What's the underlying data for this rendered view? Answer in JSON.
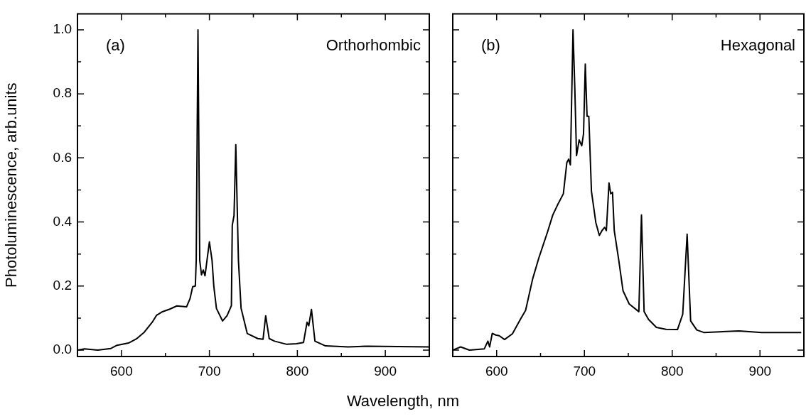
{
  "chart_data": [
    {
      "type": "line",
      "xlabel": "Wavelength, nm",
      "ylabel": "Photoluminescence, arb.units",
      "annotations": [
        "(a)",
        "Orthorhombic"
      ],
      "grid": false,
      "legend": false,
      "marker": "none",
      "color": "#000000",
      "x": [
        550,
        558,
        573,
        588,
        595,
        608,
        617,
        626,
        635,
        640,
        646,
        655,
        663,
        674,
        678,
        681,
        684,
        685,
        687,
        689,
        691,
        693,
        695,
        698,
        700,
        703,
        705,
        708,
        715,
        720,
        725,
        726,
        728,
        730,
        733,
        736,
        743,
        755,
        761,
        764,
        768,
        774,
        788,
        799,
        807,
        811,
        813,
        816,
        820,
        832,
        858,
        879,
        950
      ],
      "values": [
        0.0,
        0.004,
        0.0,
        0.005,
        0.015,
        0.022,
        0.035,
        0.056,
        0.087,
        0.109,
        0.119,
        0.128,
        0.138,
        0.135,
        0.161,
        0.198,
        0.2,
        0.28,
        1.0,
        0.28,
        0.235,
        0.25,
        0.232,
        0.296,
        0.338,
        0.28,
        0.2,
        0.13,
        0.091,
        0.107,
        0.139,
        0.39,
        0.42,
        0.641,
        0.28,
        0.131,
        0.052,
        0.036,
        0.034,
        0.107,
        0.036,
        0.028,
        0.018,
        0.02,
        0.024,
        0.087,
        0.076,
        0.127,
        0.028,
        0.013,
        0.01,
        0.012,
        0.01
      ],
      "xlim": [
        550,
        950
      ],
      "ylim": [
        -0.02,
        1.05
      ],
      "xticks": [
        600,
        {
          "value": 650,
          "label": null
        },
        700,
        {
          "value": 750,
          "label": null
        },
        800,
        {
          "value": 850,
          "label": null
        },
        900
      ],
      "yticks": [
        {
          "value": 0,
          "label": "0.0"
        },
        {
          "value": 0.1,
          "label": null
        },
        0.2,
        {
          "value": 0.3,
          "label": null
        },
        0.4,
        {
          "value": 0.5,
          "label": null
        },
        0.6,
        {
          "value": 0.7,
          "label": null
        },
        0.8,
        {
          "value": 0.9,
          "label": null
        },
        {
          "value": 1,
          "label": "1.0"
        }
      ]
    },
    {
      "type": "line",
      "annotations": [
        "(b)",
        "Hexagonal"
      ],
      "grid": false,
      "legend": false,
      "marker": "none",
      "color": "#000000",
      "tick_labels": "x",
      "x": [
        550,
        559,
        569,
        586,
        590,
        592,
        595,
        599,
        603,
        609,
        618,
        627,
        633,
        641,
        648,
        658,
        664,
        669,
        676,
        680,
        682,
        684,
        687,
        689,
        691,
        694,
        697,
        699,
        701,
        703,
        705,
        708,
        713,
        717,
        720,
        723,
        725,
        728,
        730,
        732,
        734,
        739,
        744,
        751,
        762,
        765,
        768,
        773,
        782,
        793,
        806,
        812,
        817,
        821,
        828,
        836,
        876,
        902,
        947
      ],
      "values": [
        0.0,
        0.01,
        0.0,
        0.004,
        0.028,
        0.01,
        0.052,
        0.047,
        0.045,
        0.033,
        0.051,
        0.096,
        0.124,
        0.222,
        0.287,
        0.369,
        0.422,
        0.451,
        0.488,
        0.586,
        0.596,
        0.578,
        1.0,
        0.824,
        0.607,
        0.656,
        0.638,
        0.676,
        0.893,
        0.73,
        0.73,
        0.496,
        0.398,
        0.358,
        0.373,
        0.383,
        0.373,
        0.522,
        0.488,
        0.493,
        0.373,
        0.283,
        0.185,
        0.144,
        0.12,
        0.422,
        0.12,
        0.096,
        0.071,
        0.065,
        0.064,
        0.112,
        0.362,
        0.091,
        0.063,
        0.055,
        0.06,
        0.055,
        0.055
      ],
      "xlim": [
        550,
        950
      ],
      "ylim": [
        -0.02,
        1.05
      ],
      "xticks": [
        600,
        {
          "value": 650,
          "label": null
        },
        700,
        {
          "value": 750,
          "label": null
        },
        800,
        {
          "value": 850,
          "label": null
        },
        900
      ],
      "yticks": [
        0,
        {
          "value": 0.1,
          "label": null
        },
        0.2,
        {
          "value": 0.3,
          "label": null
        },
        0.4,
        {
          "value": 0.5,
          "label": null
        },
        0.6,
        {
          "value": 0.7,
          "label": null
        },
        0.8,
        {
          "value": 0.9,
          "label": null
        },
        1
      ]
    }
  ]
}
